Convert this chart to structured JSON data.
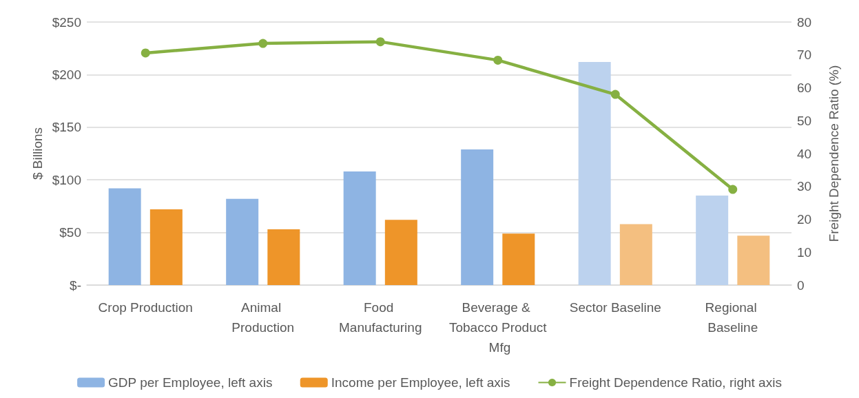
{
  "chart_data": {
    "type": "bar",
    "ylabel": "$ Billions",
    "y2label": "Freight Dependence Ratio (%)",
    "categories": [
      "Crop Production",
      "Animal Production",
      "Food Manufacturing",
      "Beverage & Tobacco Product Mfg",
      "Sector Baseline",
      "Regional Baseline"
    ],
    "series": [
      {
        "name": "GDP per Employee, left axis",
        "color": "#8eb4e3",
        "colors": [
          "#8eb4e3",
          "#8eb4e3",
          "#8eb4e3",
          "#8eb4e3",
          "#bcd2ee",
          "#bcd2ee"
        ],
        "values": [
          92,
          82,
          108,
          129,
          212,
          85
        ]
      },
      {
        "name": "Income per Employee, left axis",
        "color": "#ee9529",
        "colors": [
          "#ee9529",
          "#ee9529",
          "#ee9529",
          "#ee9529",
          "#f4bf80",
          "#f4bf80"
        ],
        "values": [
          72,
          53,
          62,
          49,
          58,
          47
        ]
      },
      {
        "name": "Freight Dependence Ratio, right axis",
        "type": "line",
        "axis": "y2",
        "color": "#86b042",
        "marker": "circle",
        "values": [
          70.6,
          73.5,
          74,
          68.4,
          58,
          29.1
        ]
      }
    ],
    "ylim": [
      0,
      250
    ],
    "yticks": [
      {
        "value": 0,
        "label": "$-"
      },
      {
        "value": 50,
        "label": "$50"
      },
      {
        "value": 100,
        "label": "$100"
      },
      {
        "value": 150,
        "label": "$150"
      },
      {
        "value": 200,
        "label": "$200"
      },
      {
        "value": 250,
        "label": "$250"
      }
    ],
    "y2lim": [
      0,
      80
    ],
    "y2ticks": [
      0,
      10,
      20,
      30,
      40,
      50,
      60,
      70,
      80
    ],
    "grid": "y",
    "legend": "bottom"
  }
}
